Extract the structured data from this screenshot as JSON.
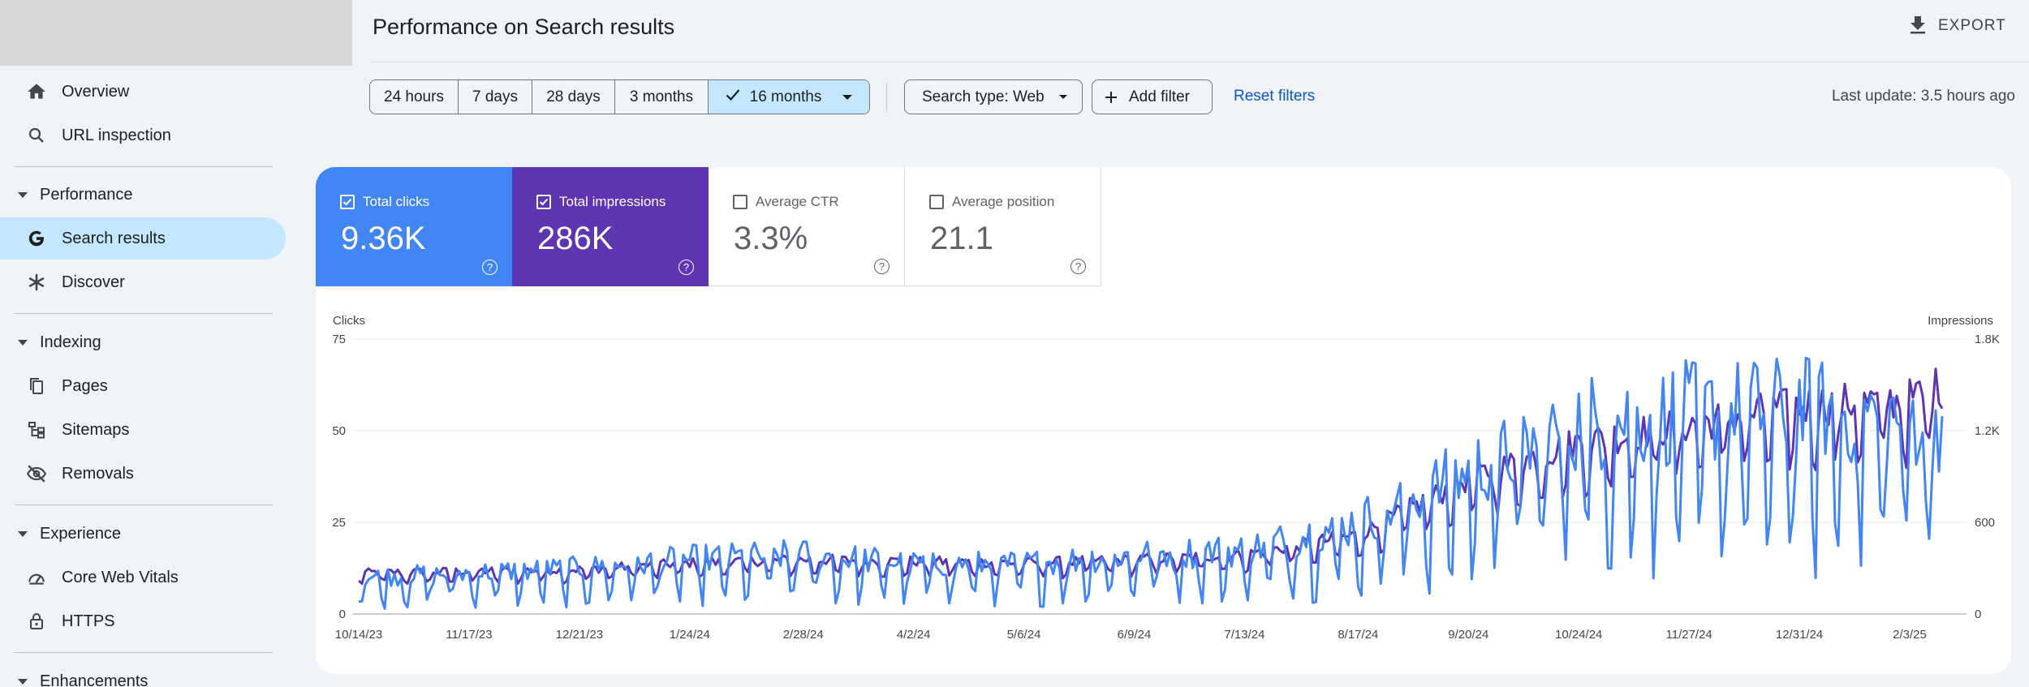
{
  "sidebar": {
    "items": {
      "overview": "Overview",
      "url_inspection": "URL inspection",
      "performance": "Performance",
      "search_results": "Search results",
      "discover": "Discover",
      "indexing": "Indexing",
      "pages": "Pages",
      "sitemaps": "Sitemaps",
      "removals": "Removals",
      "experience": "Experience",
      "core_web_vitals": "Core Web Vitals",
      "https": "HTTPS",
      "enhancements": "Enhancements"
    }
  },
  "header": {
    "title": "Performance on Search results",
    "export_label": "EXPORT"
  },
  "filters": {
    "date_ranges": [
      "24 hours",
      "7 days",
      "28 days",
      "3 months",
      "16 months"
    ],
    "selected_range": "16 months",
    "search_type": "Search type: Web",
    "add_filter": "Add filter",
    "reset": "Reset filters",
    "last_update": "Last update: 3.5 hours ago"
  },
  "metrics": {
    "total_clicks": {
      "label": "Total clicks",
      "value": "9.36K",
      "checked": true,
      "color": "#4285f4"
    },
    "total_impressions": {
      "label": "Total impressions",
      "value": "286K",
      "checked": true,
      "color": "#5e35b1"
    },
    "average_ctr": {
      "label": "Average CTR",
      "value": "3.3%",
      "checked": false
    },
    "average_position": {
      "label": "Average position",
      "value": "21.1",
      "checked": false
    }
  },
  "chart_data": {
    "type": "line",
    "left_axis_label": "Clicks",
    "right_axis_label": "Impressions",
    "left_ticks": [
      "75",
      "50",
      "25",
      "0"
    ],
    "right_ticks": [
      "1.8K",
      "1.2K",
      "600",
      "0"
    ],
    "ylim_left": [
      0,
      75
    ],
    "ylim_right": [
      0,
      1800
    ],
    "x_tick_labels": [
      "10/14/23",
      "11/17/23",
      "12/21/23",
      "1/24/24",
      "2/28/24",
      "4/2/24",
      "5/6/24",
      "6/9/24",
      "7/13/24",
      "8/17/24",
      "9/20/24",
      "10/24/24",
      "11/27/24",
      "12/31/24",
      "2/3/25"
    ],
    "series": [
      {
        "name": "Clicks",
        "color": "#4285f4",
        "axis": "left",
        "trend": [
          [
            "10/14/23",
            8
          ],
          [
            "11/17/23",
            9
          ],
          [
            "12/21/23",
            10
          ],
          [
            "1/24/24",
            12
          ],
          [
            "2/28/24",
            13
          ],
          [
            "4/2/24",
            11
          ],
          [
            "5/6/24",
            11
          ],
          [
            "6/9/24",
            13
          ],
          [
            "7/13/24",
            14
          ],
          [
            "8/17/24",
            20
          ],
          [
            "9/20/24",
            31
          ],
          [
            "10/24/24",
            42
          ],
          [
            "11/27/24",
            44
          ],
          [
            "12/31/24",
            45
          ],
          [
            "2/3/25",
            43
          ],
          [
            "2/13/25",
            42
          ]
        ],
        "amplitude_ratio": 0.55
      },
      {
        "name": "Impressions",
        "color": "#5e35b1",
        "axis": "right",
        "trend": [
          [
            "10/14/23",
            250
          ],
          [
            "11/17/23",
            260
          ],
          [
            "12/21/23",
            270
          ],
          [
            "1/24/24",
            310
          ],
          [
            "2/28/24",
            330
          ],
          [
            "4/2/24",
            320
          ],
          [
            "5/6/24",
            310
          ],
          [
            "6/9/24",
            330
          ],
          [
            "7/13/24",
            360
          ],
          [
            "8/17/24",
            480
          ],
          [
            "9/20/24",
            820
          ],
          [
            "10/24/24",
            1040
          ],
          [
            "11/27/24",
            1150
          ],
          [
            "12/31/24",
            1260
          ],
          [
            "2/3/25",
            1300
          ],
          [
            "2/13/25",
            1380
          ]
        ],
        "amplitude_ratio": 0.18
      }
    ]
  }
}
